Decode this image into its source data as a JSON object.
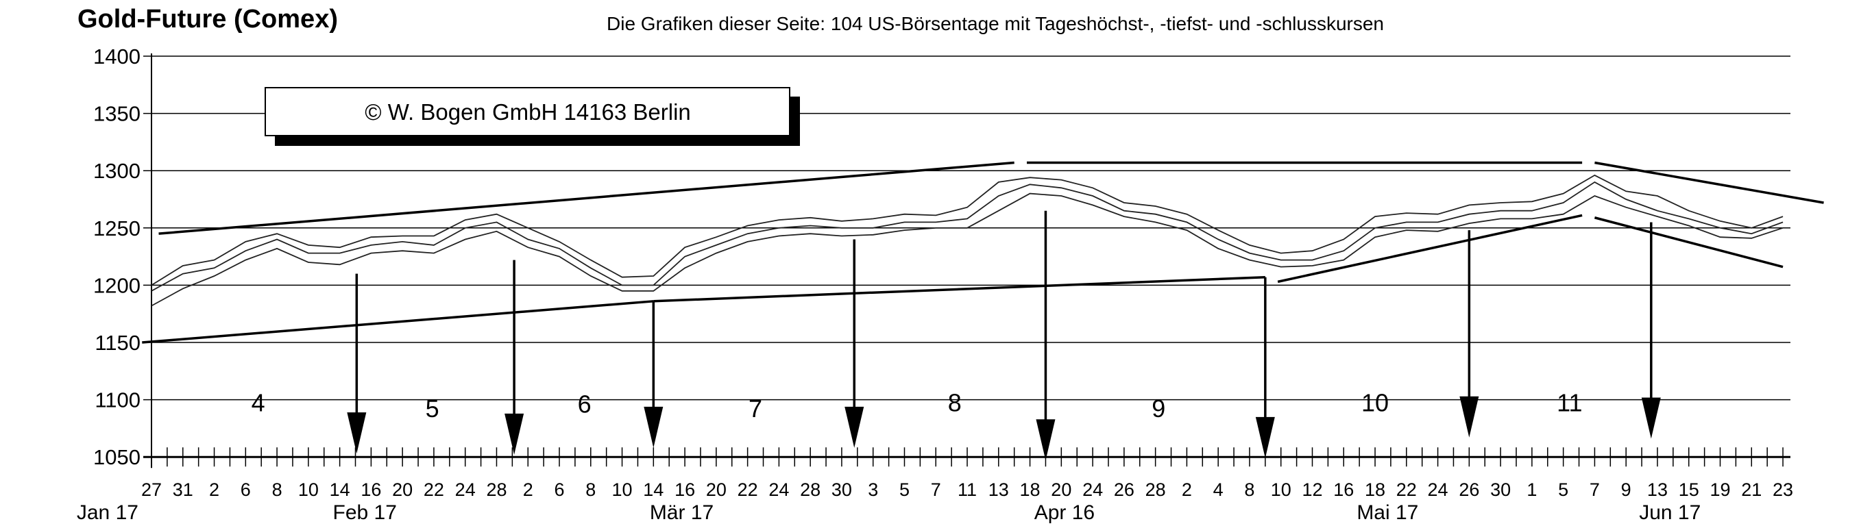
{
  "chart_data": {
    "type": "line",
    "title": "Gold-Future (Comex)",
    "subtitle": "Die Grafiken dieser Seite: 104 US-Börsentage mit Tageshöchst-, -tiefst- und -schlusskursen",
    "copyright": "©  W. Bogen GmbH 14163 Berlin",
    "ylim": [
      1050,
      1400
    ],
    "yticks": [
      "1400",
      "1350",
      "1300",
      "1250",
      "1200",
      "1150",
      "1100",
      "1050"
    ],
    "grid": true,
    "x_tick_labels": [
      "27",
      "31",
      "2",
      "6",
      "8",
      "10",
      "14",
      "16",
      "20",
      "22",
      "24",
      "28",
      "2",
      "6",
      "8",
      "10",
      "14",
      "16",
      "20",
      "22",
      "24",
      "28",
      "30",
      "3",
      "5",
      "7",
      "11",
      "13",
      "18",
      "20",
      "24",
      "26",
      "28",
      "2",
      "4",
      "8",
      "10",
      "12",
      "16",
      "18",
      "22",
      "24",
      "26",
      "30",
      "1",
      "5",
      "7",
      "9",
      "13",
      "15",
      "19",
      "21",
      "23"
    ],
    "month_labels": [
      {
        "label": "Jan 17",
        "at_index": -1.4
      },
      {
        "label": "Feb 17",
        "at_index": 6.8
      },
      {
        "label": "Mär 17",
        "at_index": 16.9
      },
      {
        "label": "Apr 16",
        "at_index": 29.1
      },
      {
        "label": "Mai 17",
        "at_index": 39.4
      },
      {
        "label": "Jun 17",
        "at_index": 48.4
      }
    ],
    "series": [
      {
        "name": "close",
        "values": [
          1195,
          1210,
          1215,
          1230,
          1240,
          1228,
          1228,
          1235,
          1238,
          1235,
          1250,
          1255,
          1240,
          1232,
          1215,
          1200,
          1200,
          1225,
          1235,
          1245,
          1250,
          1252,
          1250,
          1250,
          1255,
          1255,
          1258,
          1278,
          1288,
          1285,
          1278,
          1265,
          1262,
          1255,
          1240,
          1228,
          1222,
          1222,
          1230,
          1250,
          1255,
          1255,
          1262,
          1265,
          1265,
          1272,
          1290,
          1275,
          1265,
          1258,
          1250,
          1245,
          1255
        ]
      },
      {
        "name": "high",
        "values": [
          1200,
          1217,
          1222,
          1238,
          1245,
          1235,
          1233,
          1242,
          1243,
          1243,
          1257,
          1262,
          1250,
          1238,
          1222,
          1207,
          1208,
          1233,
          1242,
          1252,
          1257,
          1259,
          1256,
          1258,
          1262,
          1261,
          1268,
          1290,
          1294,
          1292,
          1285,
          1272,
          1269,
          1262,
          1248,
          1235,
          1228,
          1230,
          1240,
          1260,
          1263,
          1262,
          1270,
          1272,
          1273,
          1280,
          1296,
          1282,
          1278,
          1265,
          1256,
          1250,
          1260
        ]
      },
      {
        "name": "low",
        "values": [
          1182,
          1197,
          1208,
          1222,
          1232,
          1220,
          1218,
          1228,
          1230,
          1228,
          1240,
          1247,
          1233,
          1225,
          1208,
          1195,
          1195,
          1215,
          1228,
          1238,
          1243,
          1245,
          1243,
          1244,
          1248,
          1250,
          1250,
          1265,
          1280,
          1278,
          1270,
          1260,
          1255,
          1248,
          1232,
          1222,
          1216,
          1217,
          1222,
          1242,
          1248,
          1247,
          1254,
          1258,
          1258,
          1262,
          1278,
          1268,
          1260,
          1252,
          1242,
          1241,
          1250
        ]
      }
    ],
    "trendlines": [
      {
        "from": [
          0.23,
          1245
        ],
        "to": [
          27.5,
          1307
        ]
      },
      {
        "from": [
          27.9,
          1307
        ],
        "to": [
          45.6,
          1307
        ]
      },
      {
        "from": [
          46.0,
          1307
        ],
        "to": [
          53.3,
          1272
        ]
      },
      {
        "from": [
          -0.3,
          1150
        ],
        "to": [
          16.0,
          1186
        ]
      },
      {
        "from": [
          16.0,
          1186
        ],
        "to": [
          35.5,
          1207
        ]
      },
      {
        "from": [
          35.9,
          1203
        ],
        "to": [
          45.6,
          1261
        ]
      },
      {
        "from": [
          46.0,
          1259
        ],
        "to": [
          52.0,
          1216
        ]
      }
    ],
    "arrows": [
      {
        "index": 6.54,
        "from": 1210,
        "to": 1053
      },
      {
        "index": 11.56,
        "from": 1222,
        "to": 1052
      },
      {
        "index": 16.0,
        "from": 1186,
        "to": 1058
      },
      {
        "index": 22.4,
        "from": 1240,
        "to": 1058
      },
      {
        "index": 28.5,
        "from": 1265,
        "to": 1047
      },
      {
        "index": 35.5,
        "from": 1207,
        "to": 1049
      },
      {
        "index": 42.0,
        "from": 1248,
        "to": 1067
      },
      {
        "index": 47.8,
        "from": 1255,
        "to": 1066
      }
    ],
    "periods": [
      {
        "label": "4",
        "index": 3.4,
        "value": 1097
      },
      {
        "label": "5",
        "index": 8.95,
        "value": 1092
      },
      {
        "label": "6",
        "index": 13.8,
        "value": 1096
      },
      {
        "label": "7",
        "index": 19.25,
        "value": 1092
      },
      {
        "label": "8",
        "index": 25.6,
        "value": 1097
      },
      {
        "label": "9",
        "index": 32.1,
        "value": 1092
      },
      {
        "label": "10",
        "index": 39.0,
        "value": 1097
      },
      {
        "label": "11",
        "index": 45.2,
        "value": 1097
      }
    ]
  }
}
